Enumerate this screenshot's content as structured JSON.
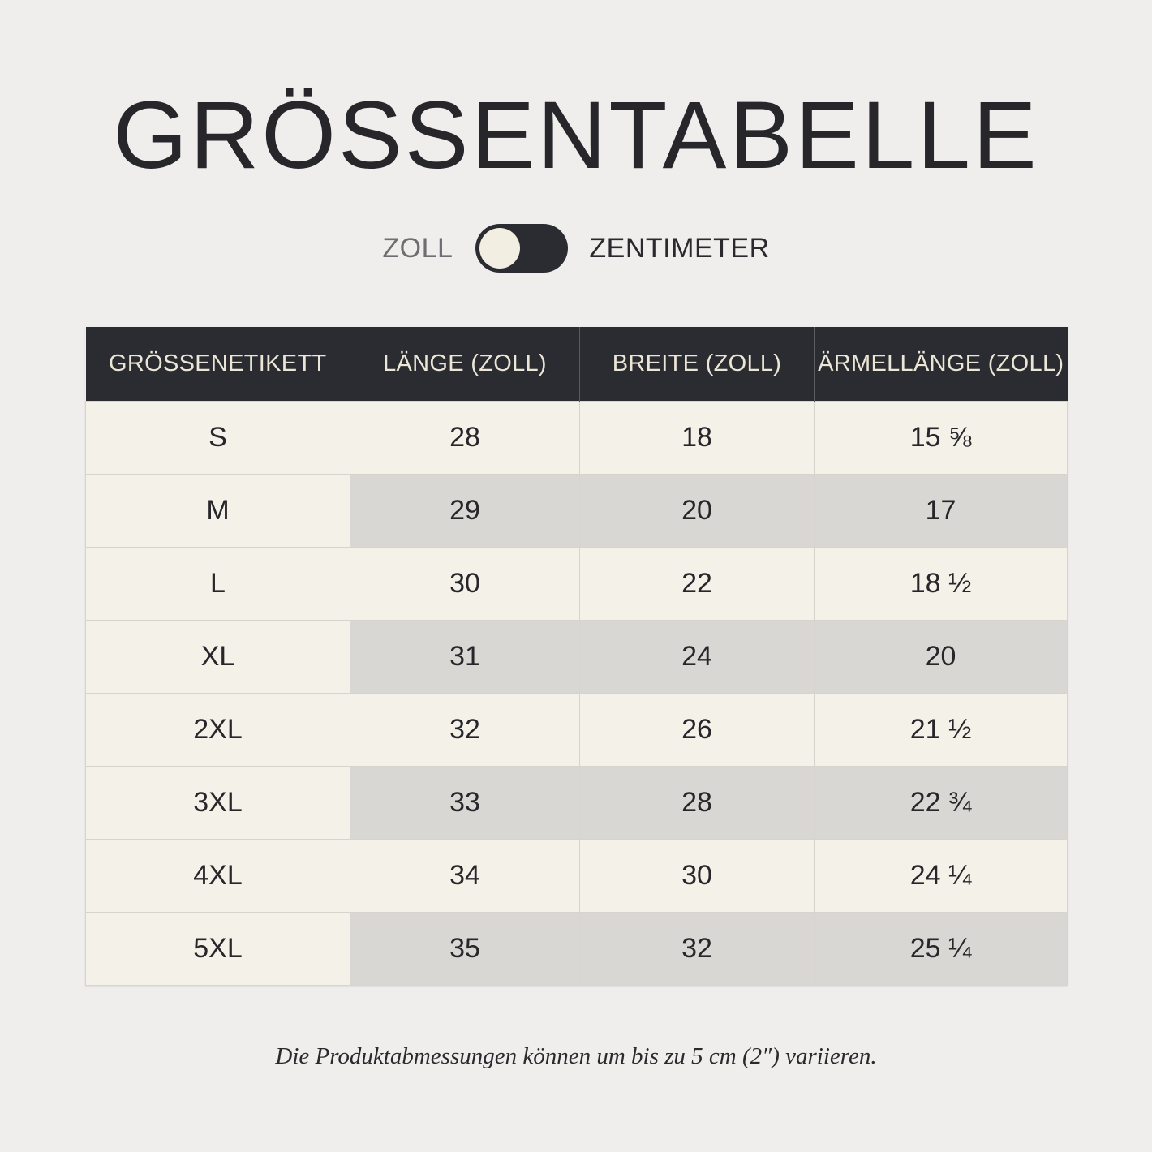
{
  "title": "GRÖSSENTABELLE",
  "unit_toggle": {
    "left_label": "ZOLL",
    "right_label": "ZENTIMETER",
    "selected": "ZOLL"
  },
  "table": {
    "headers": [
      "GRÖSSENETIKETT",
      "LÄNGE (ZOLL)",
      "BREITE (ZOLL)",
      "ÄRMELLÄNGE (ZOLL)"
    ],
    "rows": [
      [
        "S",
        "28",
        "18",
        "15 ⅝"
      ],
      [
        "M",
        "29",
        "20",
        "17"
      ],
      [
        "L",
        "30",
        "22",
        "18 ½"
      ],
      [
        "XL",
        "31",
        "24",
        "20"
      ],
      [
        "2XL",
        "32",
        "26",
        "21 ½"
      ],
      [
        "3XL",
        "33",
        "28",
        "22 ¾"
      ],
      [
        "4XL",
        "34",
        "30",
        "24 ¼"
      ],
      [
        "5XL",
        "35",
        "32",
        "25 ¼"
      ]
    ]
  },
  "note": "Die Produktabmessungen können um bis zu 5 cm (2″) variieren.",
  "colors": {
    "background": "#efeeec",
    "header_bg": "#2b2c31",
    "header_text": "#ece6d6",
    "row_light": "#f4f1e9",
    "row_shaded": "#d8d7d3",
    "text": "#26262b"
  }
}
